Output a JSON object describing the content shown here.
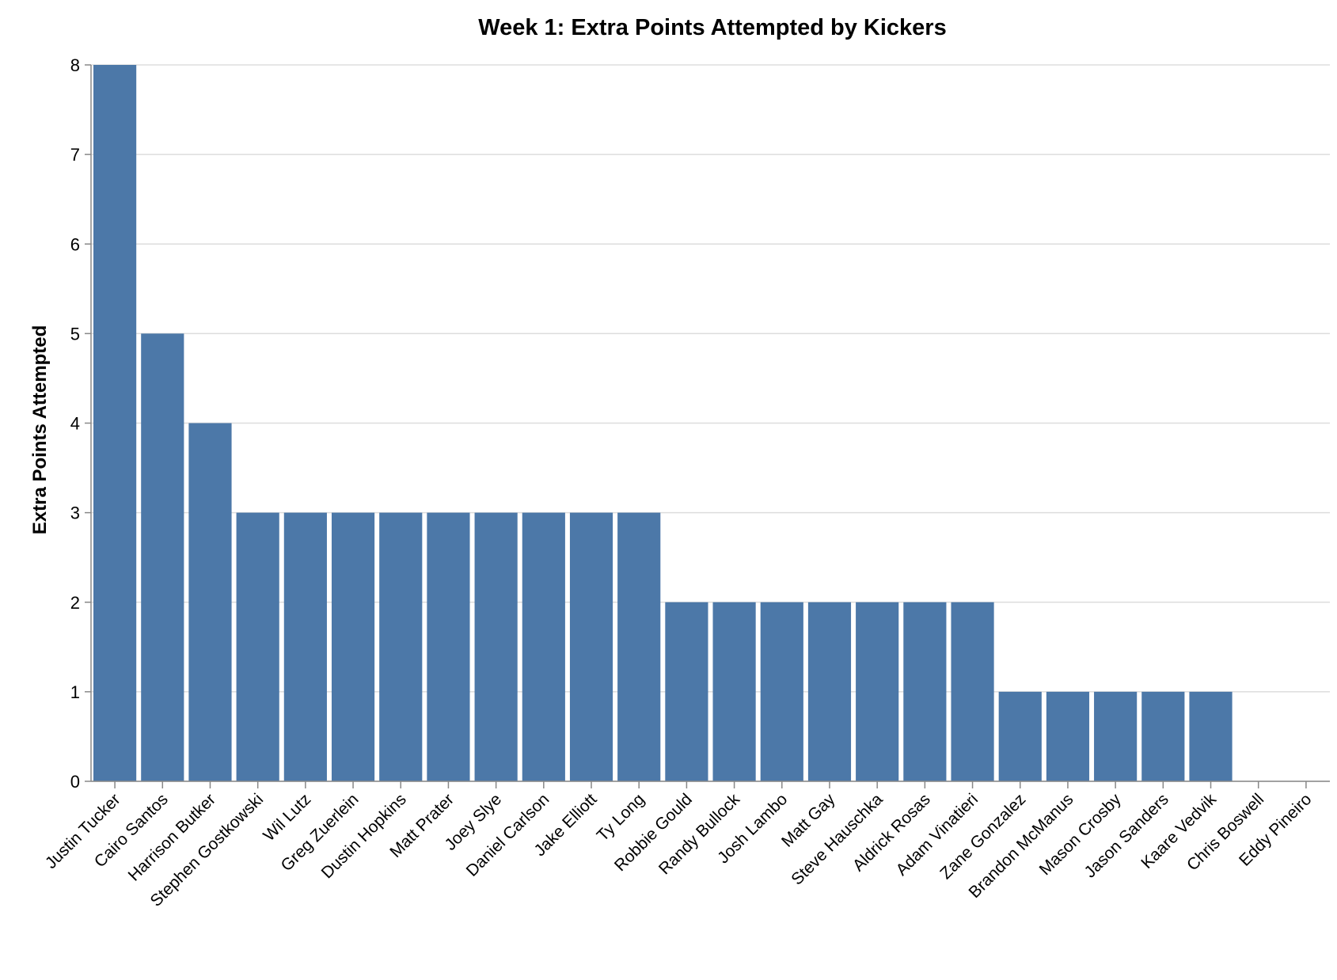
{
  "chart_data": {
    "type": "bar",
    "title": "Week 1: Extra Points Attempted by Kickers",
    "xlabel": "",
    "ylabel": "Extra Points Attempted",
    "ylim": [
      0,
      8
    ],
    "yticks": [
      0,
      1,
      2,
      3,
      4,
      5,
      6,
      7,
      8
    ],
    "grid": true,
    "bar_color": "#4c78a8",
    "categories": [
      "Justin Tucker",
      "Cairo Santos",
      "Harrison Butker",
      "Stephen Gostkowski",
      "Wil Lutz",
      "Greg Zuerlein",
      "Dustin Hopkins",
      "Matt Prater",
      "Joey Slye",
      "Daniel Carlson",
      "Jake Elliott",
      "Ty Long",
      "Robbie Gould",
      "Randy Bullock",
      "Josh Lambo",
      "Matt Gay",
      "Steve Hauschka",
      "Aldrick Rosas",
      "Adam Vinatieri",
      "Zane Gonzalez",
      "Brandon McManus",
      "Mason Crosby",
      "Jason Sanders",
      "Kaare Vedvik",
      "Chris Boswell",
      "Eddy Pineiro"
    ],
    "values": [
      8,
      5,
      4,
      3,
      3,
      3,
      3,
      3,
      3,
      3,
      3,
      3,
      2,
      2,
      2,
      2,
      2,
      2,
      2,
      1,
      1,
      1,
      1,
      1,
      0,
      0
    ]
  }
}
